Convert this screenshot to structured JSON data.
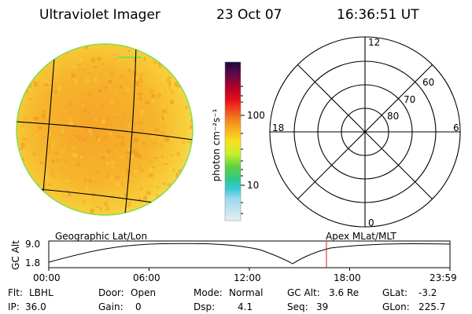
{
  "header": {
    "title": "Ultraviolet Imager",
    "date": "23 Oct 07",
    "time": "16:36:51 UT"
  },
  "colorbar": {
    "unit_label": "photon cm⁻²s⁻¹",
    "ticks": [
      "100",
      "10"
    ]
  },
  "polar_plot": {
    "labels": {
      "top": "12",
      "bottom": "0",
      "left": "18",
      "right": "6"
    },
    "lat_labels": [
      "60",
      "70",
      "80"
    ]
  },
  "timeline": {
    "ylabel": "GC Alt",
    "left_title": "Geographic Lat/Lon",
    "right_title": "Apex MLat/MLT",
    "y_ticks": [
      "9.0",
      "1.8"
    ],
    "x_ticks": [
      "00:00",
      "06:00",
      "12:00",
      "18:00",
      "23:59"
    ],
    "current_time_hours": 16.61,
    "marker_color": "#cc2222"
  },
  "info": {
    "flt_label": "Flt:",
    "flt_value": "LBHL",
    "ip_label": "IP:",
    "ip_value": "36.0",
    "door_label": "Door:",
    "door_value": "Open",
    "gain_label": "Gain:",
    "gain_value": "0",
    "mode_label": "Mode:",
    "mode_value": "Normal",
    "dsp_label": "Dsp:",
    "dsp_value": "4.1",
    "gcalt_label": "GC Alt:",
    "gcalt_value": "3.6 Re",
    "seq_label": "Seq:",
    "seq_value": "39",
    "glat_label": "GLat:",
    "glat_value": "-3.2",
    "glon_label": "GLon:",
    "glon_value": "225.7"
  },
  "colors": {
    "disk_base": "#f6c12a",
    "disk_rim": "#7ee04a",
    "grid_line": "#000000"
  }
}
